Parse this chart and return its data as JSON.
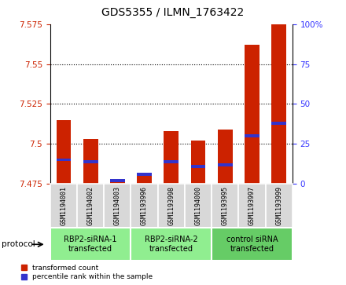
{
  "title": "GDS5355 / ILMN_1763422",
  "samples": [
    "GSM1194001",
    "GSM1194002",
    "GSM1194003",
    "GSM1193996",
    "GSM1193998",
    "GSM1194000",
    "GSM1193995",
    "GSM1193997",
    "GSM1193999"
  ],
  "transformed_count": [
    7.515,
    7.503,
    7.477,
    7.482,
    7.508,
    7.502,
    7.509,
    7.562,
    7.575
  ],
  "percentile_rank": [
    15,
    14,
    2,
    6,
    14,
    11,
    12,
    30,
    38
  ],
  "groups": [
    {
      "label": "RBP2-siRNA-1\ntransfected",
      "start": 0,
      "end": 3,
      "color": "#90ee90"
    },
    {
      "label": "RBP2-siRNA-2\ntransfected",
      "start": 3,
      "end": 6,
      "color": "#90ee90"
    },
    {
      "label": "control siRNA\ntransfected",
      "start": 6,
      "end": 9,
      "color": "#66cc66"
    }
  ],
  "y_min": 7.475,
  "y_max": 7.575,
  "y_ticks": [
    7.475,
    7.5,
    7.525,
    7.55,
    7.575
  ],
  "y2_ticks": [
    0,
    25,
    50,
    75,
    100
  ],
  "bar_color_red": "#cc2200",
  "bar_color_blue": "#3333cc",
  "bar_width": 0.55,
  "left_color": "#cc2200",
  "right_color": "#3333ff",
  "bg_color": "#d8d8d8",
  "protocol_label": "protocol"
}
